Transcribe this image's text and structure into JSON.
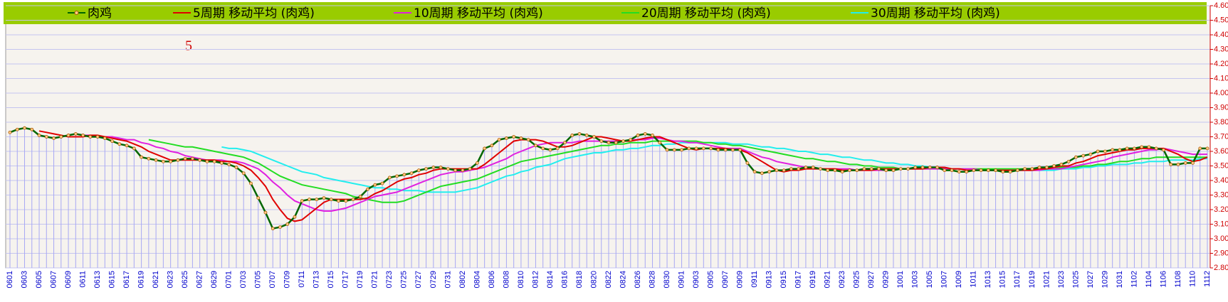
{
  "chart_data": {
    "type": "line",
    "annotation": "5",
    "categories": [
      "0601",
      null,
      "0603",
      null,
      "0605",
      null,
      "0607",
      null,
      "0609",
      null,
      "0611",
      null,
      "0613",
      null,
      "0615",
      null,
      "0617",
      null,
      "0619",
      null,
      "0621",
      null,
      "0623",
      null,
      "0625",
      null,
      "0627",
      null,
      "0629",
      null,
      "0701",
      null,
      "0703",
      null,
      "0705",
      null,
      "0707",
      null,
      "0709",
      null,
      "0711",
      null,
      "0713",
      null,
      "0715",
      null,
      "0717",
      null,
      "0719",
      null,
      "0721",
      null,
      "0723",
      null,
      "0725",
      null,
      "0727",
      null,
      "0729",
      null,
      "0731",
      null,
      "0802",
      null,
      "0804",
      null,
      "0806",
      null,
      "0808",
      null,
      "0810",
      null,
      "0812",
      null,
      "0814",
      null,
      "0816",
      null,
      "0818",
      null,
      "0820",
      null,
      "0822",
      null,
      "0824",
      null,
      "0826",
      null,
      "0828",
      null,
      "0830",
      null,
      "0901",
      null,
      "0903",
      null,
      "0905",
      null,
      "0907",
      null,
      "0909",
      null,
      "0911",
      null,
      "0913",
      null,
      "0915",
      null,
      "0917",
      null,
      "0919",
      null,
      "0921",
      null,
      "0923",
      null,
      "0925",
      null,
      "0927",
      null,
      "0929",
      null,
      "1001",
      null,
      "1003",
      null,
      "1005",
      null,
      "1007",
      null,
      "1009",
      null,
      "1011",
      null,
      "1013",
      null,
      "1015",
      null,
      "1017",
      null,
      "1019",
      null,
      "1021",
      null,
      "1023",
      null,
      "1025",
      null,
      "1027",
      null,
      "1029",
      null,
      "1031",
      null,
      "1102",
      null,
      "1104",
      null,
      "1106",
      null,
      "1108",
      null,
      "1110",
      null,
      "1112"
    ],
    "series": [
      {
        "name": "肉鸡",
        "color": "#006600",
        "marker": true,
        "values": [
          3.73,
          3.75,
          3.76,
          3.75,
          3.71,
          3.7,
          3.69,
          3.7,
          3.71,
          3.72,
          3.71,
          3.7,
          3.7,
          3.69,
          3.67,
          3.65,
          3.64,
          3.62,
          3.56,
          3.55,
          3.54,
          3.53,
          3.53,
          3.54,
          3.55,
          3.55,
          3.54,
          3.53,
          3.53,
          3.52,
          3.51,
          3.49,
          3.45,
          3.38,
          3.28,
          3.18,
          3.07,
          3.08,
          3.1,
          3.15,
          3.26,
          3.27,
          3.27,
          3.28,
          3.27,
          3.26,
          3.26,
          3.27,
          3.29,
          3.34,
          3.37,
          3.38,
          3.42,
          3.43,
          3.44,
          3.45,
          3.47,
          3.48,
          3.49,
          3.49,
          3.48,
          3.47,
          3.47,
          3.48,
          3.52,
          3.62,
          3.64,
          3.68,
          3.69,
          3.7,
          3.69,
          3.68,
          3.64,
          3.62,
          3.61,
          3.62,
          3.66,
          3.71,
          3.72,
          3.71,
          3.7,
          3.67,
          3.66,
          3.66,
          3.67,
          3.68,
          3.71,
          3.72,
          3.71,
          3.66,
          3.61,
          3.61,
          3.61,
          3.62,
          3.62,
          3.62,
          3.62,
          3.61,
          3.61,
          3.61,
          3.61,
          3.52,
          3.46,
          3.45,
          3.46,
          3.47,
          3.47,
          3.48,
          3.48,
          3.49,
          3.49,
          3.48,
          3.47,
          3.47,
          3.46,
          3.47,
          3.47,
          3.48,
          3.48,
          3.48,
          3.47,
          3.47,
          3.48,
          3.48,
          3.49,
          3.49,
          3.49,
          3.49,
          3.47,
          3.47,
          3.46,
          3.46,
          3.47,
          3.47,
          3.47,
          3.47,
          3.46,
          3.46,
          3.47,
          3.48,
          3.48,
          3.49,
          3.49,
          3.5,
          3.51,
          3.53,
          3.56,
          3.57,
          3.58,
          3.6,
          3.6,
          3.61,
          3.61,
          3.62,
          3.62,
          3.63,
          3.63,
          3.62,
          3.61,
          3.51,
          3.51,
          3.52,
          3.52,
          3.62,
          3.62
        ]
      },
      {
        "name": "5周期 移动平均 (肉鸡)",
        "color": "#e00000",
        "values": [
          null,
          null,
          null,
          null,
          3.74,
          3.73,
          3.72,
          3.71,
          3.7,
          3.7,
          3.7,
          3.71,
          3.71,
          3.7,
          3.69,
          3.68,
          3.67,
          3.65,
          3.63,
          3.6,
          3.58,
          3.56,
          3.54,
          3.54,
          3.54,
          3.54,
          3.54,
          3.54,
          3.54,
          3.53,
          3.53,
          3.52,
          3.5,
          3.47,
          3.42,
          3.36,
          3.27,
          3.2,
          3.14,
          3.12,
          3.13,
          3.17,
          3.21,
          3.25,
          3.27,
          3.27,
          3.27,
          3.27,
          3.27,
          3.28,
          3.31,
          3.33,
          3.36,
          3.39,
          3.41,
          3.42,
          3.44,
          3.45,
          3.47,
          3.48,
          3.48,
          3.48,
          3.48,
          3.48,
          3.48,
          3.51,
          3.55,
          3.59,
          3.63,
          3.67,
          3.68,
          3.68,
          3.68,
          3.67,
          3.65,
          3.63,
          3.63,
          3.64,
          3.66,
          3.68,
          3.7,
          3.7,
          3.69,
          3.68,
          3.67,
          3.67,
          3.68,
          3.69,
          3.7,
          3.7,
          3.68,
          3.66,
          3.64,
          3.62,
          3.61,
          3.62,
          3.62,
          3.62,
          3.62,
          3.61,
          3.61,
          3.59,
          3.56,
          3.53,
          3.5,
          3.47,
          3.46,
          3.47,
          3.47,
          3.48,
          3.48,
          3.48,
          3.48,
          3.48,
          3.47,
          3.47,
          3.47,
          3.47,
          3.47,
          3.48,
          3.48,
          3.48,
          3.48,
          3.48,
          3.48,
          3.48,
          3.49,
          3.49,
          3.49,
          3.48,
          3.48,
          3.47,
          3.47,
          3.47,
          3.47,
          3.47,
          3.47,
          3.47,
          3.47,
          3.47,
          3.47,
          3.48,
          3.48,
          3.49,
          3.5,
          3.5,
          3.52,
          3.53,
          3.55,
          3.57,
          3.58,
          3.59,
          3.6,
          3.61,
          3.61,
          3.62,
          3.62,
          3.62,
          3.62,
          3.6,
          3.58,
          3.55,
          3.53,
          3.54,
          3.56
        ]
      },
      {
        "name": "10周期 移动平均 (肉鸡)",
        "color": "#e020e0",
        "values": [
          null,
          null,
          null,
          null,
          null,
          null,
          null,
          null,
          null,
          3.72,
          3.71,
          3.71,
          3.7,
          3.7,
          3.7,
          3.69,
          3.68,
          3.68,
          3.66,
          3.65,
          3.63,
          3.62,
          3.6,
          3.59,
          3.57,
          3.56,
          3.55,
          3.54,
          3.54,
          3.54,
          3.53,
          3.53,
          3.52,
          3.5,
          3.48,
          3.44,
          3.39,
          3.35,
          3.3,
          3.26,
          3.24,
          3.22,
          3.2,
          3.19,
          3.19,
          3.2,
          3.21,
          3.23,
          3.25,
          3.27,
          3.29,
          3.3,
          3.31,
          3.32,
          3.34,
          3.36,
          3.38,
          3.4,
          3.42,
          3.44,
          3.45,
          3.46,
          3.46,
          3.47,
          3.48,
          3.49,
          3.51,
          3.53,
          3.55,
          3.58,
          3.6,
          3.62,
          3.64,
          3.65,
          3.66,
          3.66,
          3.66,
          3.66,
          3.67,
          3.67,
          3.67,
          3.67,
          3.67,
          3.67,
          3.67,
          3.68,
          3.68,
          3.68,
          3.69,
          3.69,
          3.68,
          3.67,
          3.67,
          3.66,
          3.66,
          3.65,
          3.64,
          3.63,
          3.62,
          3.62,
          3.62,
          3.6,
          3.58,
          3.56,
          3.55,
          3.53,
          3.52,
          3.51,
          3.5,
          3.49,
          3.48,
          3.48,
          3.48,
          3.48,
          3.48,
          3.48,
          3.47,
          3.47,
          3.47,
          3.47,
          3.47,
          3.48,
          3.48,
          3.48,
          3.48,
          3.48,
          3.48,
          3.48,
          3.48,
          3.48,
          3.48,
          3.48,
          3.48,
          3.47,
          3.47,
          3.47,
          3.47,
          3.47,
          3.47,
          3.47,
          3.47,
          3.47,
          3.48,
          3.48,
          3.48,
          3.49,
          3.5,
          3.51,
          3.52,
          3.53,
          3.54,
          3.56,
          3.57,
          3.58,
          3.59,
          3.6,
          3.61,
          3.61,
          3.62,
          3.61,
          3.6,
          3.59,
          3.58,
          3.58,
          3.58
        ]
      },
      {
        "name": "20周期 移动平均 (肉鸡)",
        "color": "#22dd22",
        "values": [
          null,
          null,
          null,
          null,
          null,
          null,
          null,
          null,
          null,
          null,
          null,
          null,
          null,
          null,
          null,
          null,
          null,
          null,
          null,
          3.68,
          3.67,
          3.66,
          3.65,
          3.64,
          3.63,
          3.63,
          3.62,
          3.61,
          3.6,
          3.59,
          3.58,
          3.57,
          3.56,
          3.54,
          3.52,
          3.49,
          3.46,
          3.43,
          3.41,
          3.39,
          3.37,
          3.36,
          3.35,
          3.34,
          3.33,
          3.32,
          3.31,
          3.29,
          3.28,
          3.27,
          3.26,
          3.25,
          3.25,
          3.25,
          3.26,
          3.28,
          3.3,
          3.32,
          3.34,
          3.36,
          3.37,
          3.38,
          3.39,
          3.4,
          3.41,
          3.43,
          3.45,
          3.47,
          3.49,
          3.51,
          3.53,
          3.54,
          3.55,
          3.56,
          3.57,
          3.58,
          3.59,
          3.6,
          3.61,
          3.62,
          3.63,
          3.64,
          3.64,
          3.65,
          3.65,
          3.66,
          3.66,
          3.66,
          3.67,
          3.67,
          3.67,
          3.67,
          3.67,
          3.67,
          3.67,
          3.66,
          3.66,
          3.65,
          3.65,
          3.64,
          3.64,
          3.63,
          3.62,
          3.61,
          3.6,
          3.59,
          3.58,
          3.57,
          3.56,
          3.55,
          3.55,
          3.54,
          3.53,
          3.53,
          3.52,
          3.51,
          3.51,
          3.5,
          3.5,
          3.49,
          3.49,
          3.49,
          3.48,
          3.48,
          3.48,
          3.48,
          3.48,
          3.48,
          3.48,
          3.48,
          3.48,
          3.48,
          3.48,
          3.48,
          3.48,
          3.48,
          3.48,
          3.48,
          3.48,
          3.48,
          3.48,
          3.48,
          3.48,
          3.48,
          3.49,
          3.49,
          3.49,
          3.5,
          3.5,
          3.51,
          3.51,
          3.52,
          3.53,
          3.53,
          3.54,
          3.55,
          3.55,
          3.56,
          3.56,
          3.56,
          3.56,
          3.56,
          3.56,
          3.56,
          3.56
        ]
      },
      {
        "name": "30周期 移动平均 (肉鸡)",
        "color": "#22eeee",
        "values": [
          null,
          null,
          null,
          null,
          null,
          null,
          null,
          null,
          null,
          null,
          null,
          null,
          null,
          null,
          null,
          null,
          null,
          null,
          null,
          null,
          null,
          null,
          null,
          null,
          null,
          null,
          null,
          null,
          null,
          3.63,
          3.62,
          3.62,
          3.61,
          3.6,
          3.58,
          3.56,
          3.54,
          3.52,
          3.5,
          3.48,
          3.46,
          3.45,
          3.44,
          3.42,
          3.41,
          3.4,
          3.39,
          3.38,
          3.37,
          3.36,
          3.35,
          3.35,
          3.34,
          3.34,
          3.33,
          3.33,
          3.33,
          3.32,
          3.32,
          3.32,
          3.32,
          3.32,
          3.33,
          3.34,
          3.35,
          3.37,
          3.39,
          3.41,
          3.43,
          3.44,
          3.46,
          3.47,
          3.49,
          3.5,
          3.51,
          3.53,
          3.55,
          3.56,
          3.57,
          3.58,
          3.59,
          3.59,
          3.6,
          3.61,
          3.61,
          3.62,
          3.62,
          3.63,
          3.64,
          3.64,
          3.65,
          3.65,
          3.66,
          3.66,
          3.66,
          3.66,
          3.66,
          3.66,
          3.66,
          3.65,
          3.65,
          3.65,
          3.64,
          3.63,
          3.63,
          3.62,
          3.62,
          3.61,
          3.6,
          3.6,
          3.59,
          3.58,
          3.58,
          3.57,
          3.56,
          3.56,
          3.55,
          3.54,
          3.54,
          3.53,
          3.52,
          3.52,
          3.51,
          3.51,
          3.5,
          3.5,
          3.49,
          3.49,
          3.49,
          3.48,
          3.48,
          3.48,
          3.48,
          3.47,
          3.47,
          3.47,
          3.47,
          3.47,
          3.47,
          3.47,
          3.47,
          3.47,
          3.47,
          3.47,
          3.48,
          3.48,
          3.48,
          3.49,
          3.49,
          3.5,
          3.5,
          3.51,
          3.51,
          3.51,
          3.52,
          3.52,
          3.53,
          3.53,
          3.53,
          3.54,
          3.54,
          3.54,
          3.54,
          3.55,
          3.55
        ]
      }
    ],
    "ylim": [
      2.8,
      4.6
    ],
    "yticks": [
      {
        "value": 2.8,
        "label": "2.80"
      },
      {
        "value": 2.9,
        "label": "2.90"
      },
      {
        "value": 3.0,
        "label": "3.00"
      },
      {
        "value": 3.1,
        "label": "3.10"
      },
      {
        "value": 3.2,
        "label": "3.20"
      },
      {
        "value": 3.3,
        "label": "3.30"
      },
      {
        "value": 3.4,
        "label": "3.40"
      },
      {
        "value": 3.5,
        "label": "3.50"
      },
      {
        "value": 3.6,
        "label": "3.60"
      },
      {
        "value": 3.7,
        "label": "3.70"
      },
      {
        "value": 3.8,
        "label": "3.80"
      },
      {
        "value": 3.9,
        "label": "3.90"
      },
      {
        "value": 4.0,
        "label": "4.00"
      },
      {
        "value": 4.1,
        "label": "4.10"
      },
      {
        "value": 4.2,
        "label": "4.20"
      },
      {
        "value": 4.3,
        "label": "4.30"
      },
      {
        "value": 4.4,
        "label": "4.40"
      },
      {
        "value": 4.5,
        "label": "4.50"
      },
      {
        "value": 4.6,
        "label": "4.60"
      }
    ],
    "grid": true,
    "legend": "top",
    "y_axis_side": "right",
    "drop_lines": true
  }
}
